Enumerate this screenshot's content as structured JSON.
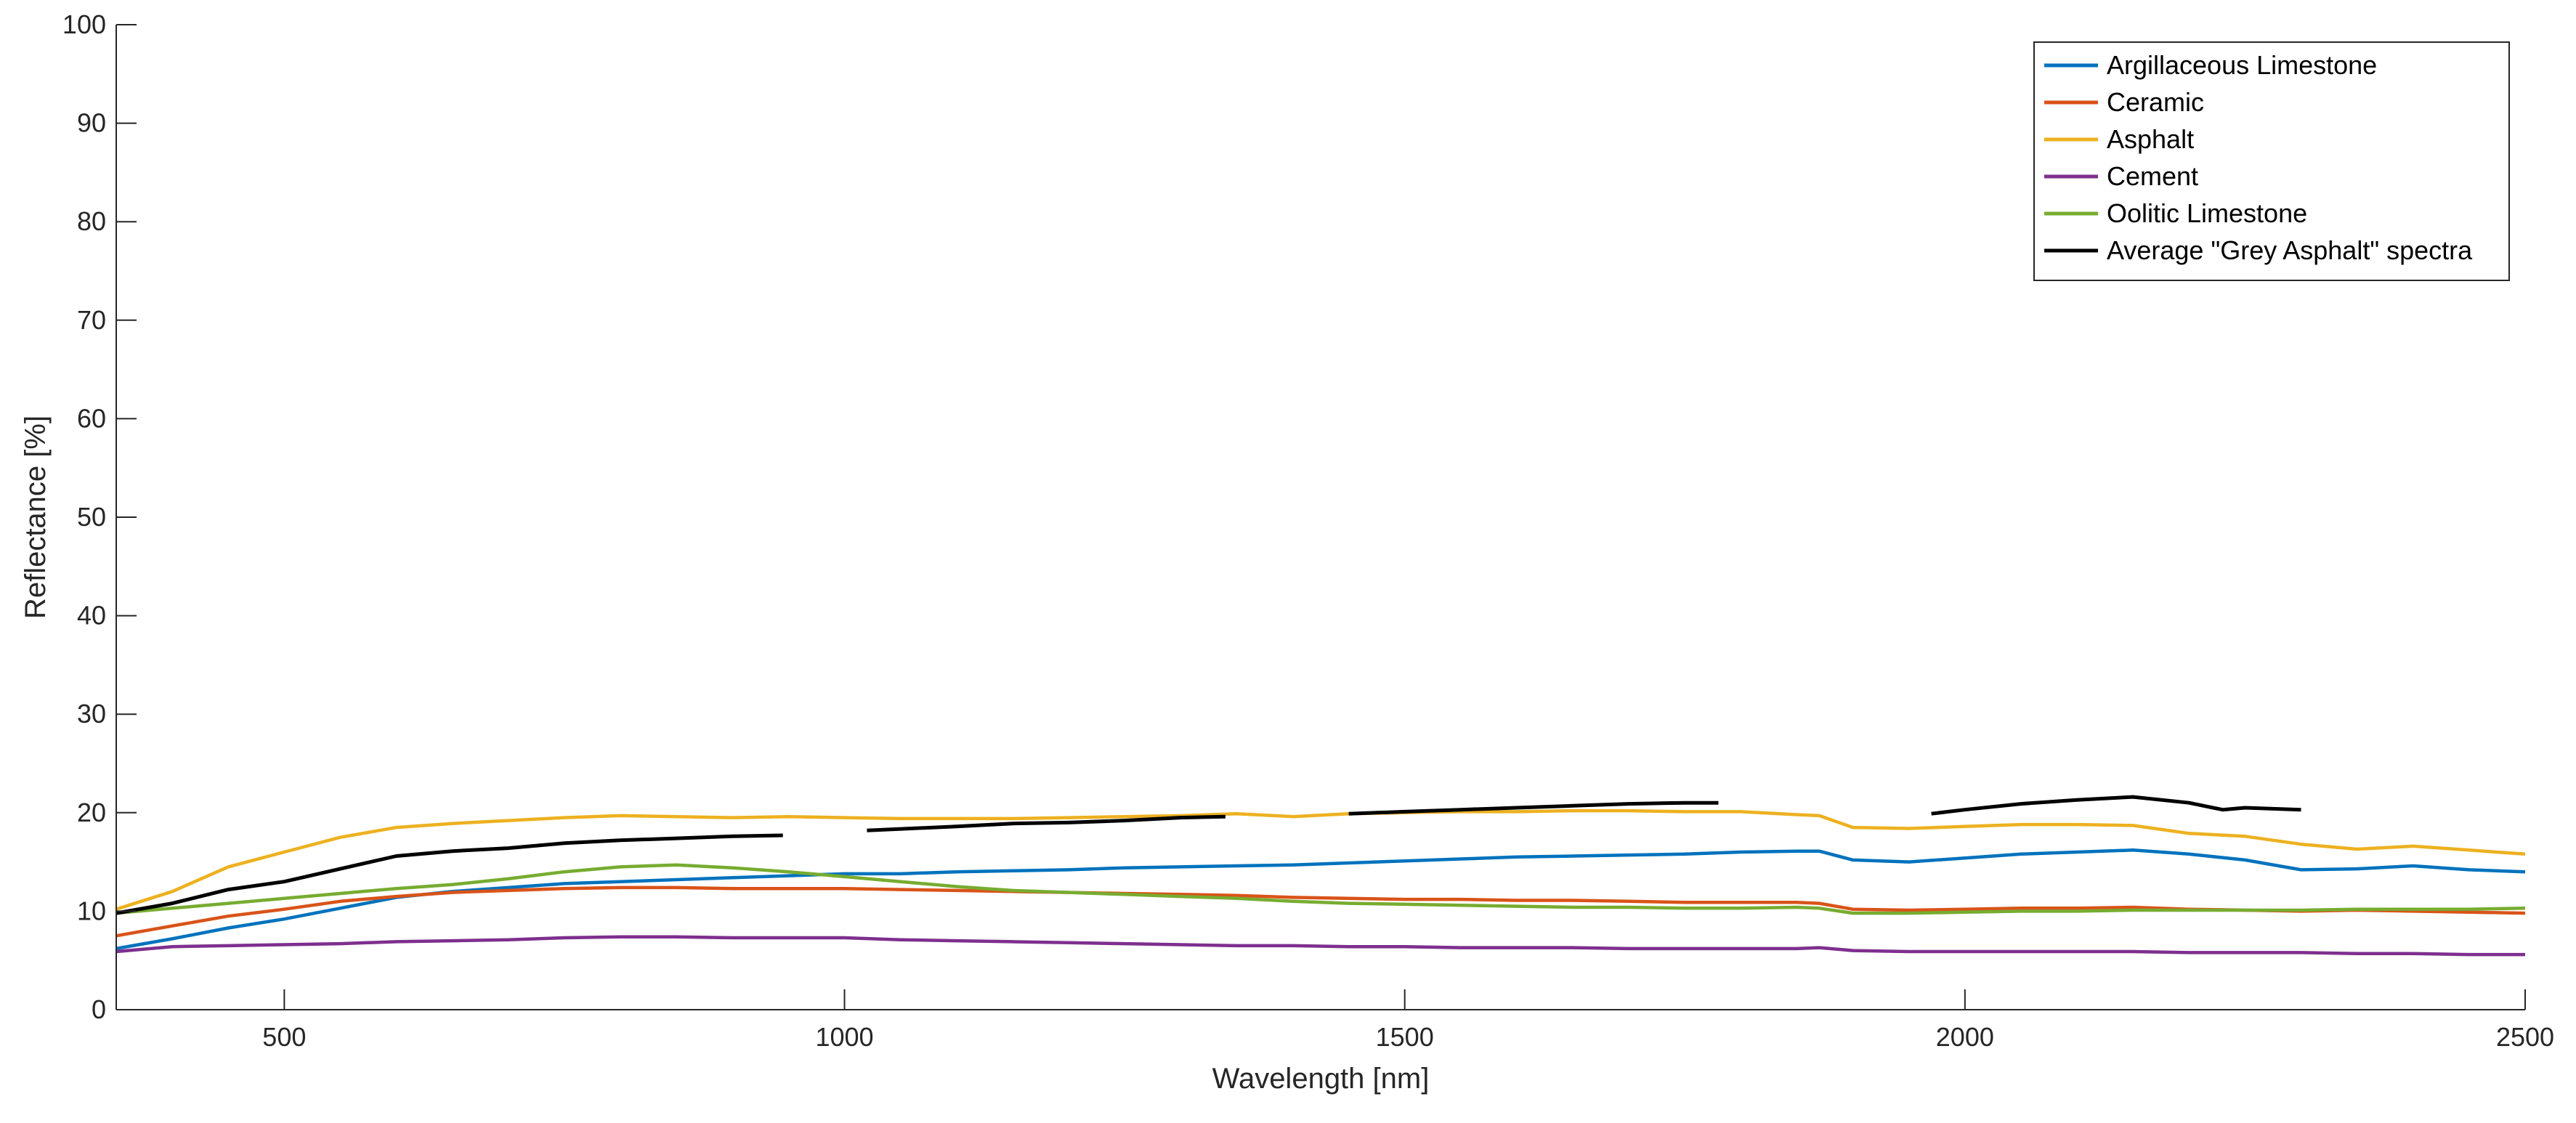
{
  "chart_data": {
    "type": "line",
    "xlabel": "Wavelength [nm]",
    "ylabel": "Reflectance [%]",
    "xlim": [
      350,
      2500
    ],
    "ylim": [
      0,
      100
    ],
    "xticks": [
      500,
      1000,
      1500,
      2000,
      2500
    ],
    "yticks": [
      0,
      10,
      20,
      30,
      40,
      50,
      60,
      70,
      80,
      90,
      100
    ],
    "grid": false,
    "legend_position": "top-right",
    "series": [
      {
        "name": "Argillaceous Limestone",
        "color": "#0072BD",
        "segments": [
          [
            [
              350,
              6.2
            ],
            [
              400,
              7.2
            ],
            [
              450,
              8.3
            ],
            [
              500,
              9.2
            ],
            [
              550,
              10.3
            ],
            [
              600,
              11.4
            ],
            [
              650,
              12.0
            ],
            [
              700,
              12.4
            ],
            [
              750,
              12.8
            ],
            [
              800,
              13.0
            ],
            [
              850,
              13.2
            ],
            [
              900,
              13.4
            ],
            [
              950,
              13.6
            ],
            [
              1000,
              13.8
            ],
            [
              1050,
              13.8
            ],
            [
              1100,
              14.0
            ],
            [
              1150,
              14.1
            ],
            [
              1200,
              14.2
            ],
            [
              1250,
              14.4
            ],
            [
              1300,
              14.5
            ],
            [
              1350,
              14.6
            ],
            [
              1400,
              14.7
            ],
            [
              1450,
              14.9
            ],
            [
              1500,
              15.1
            ],
            [
              1550,
              15.3
            ],
            [
              1600,
              15.5
            ],
            [
              1650,
              15.6
            ],
            [
              1700,
              15.7
            ],
            [
              1750,
              15.8
            ],
            [
              1800,
              16.0
            ],
            [
              1850,
              16.1
            ],
            [
              1870,
              16.1
            ],
            [
              1900,
              15.2
            ],
            [
              1950,
              15.0
            ],
            [
              2000,
              15.4
            ],
            [
              2050,
              15.8
            ],
            [
              2100,
              16.0
            ],
            [
              2150,
              16.2
            ],
            [
              2200,
              15.8
            ],
            [
              2250,
              15.2
            ],
            [
              2300,
              14.2
            ],
            [
              2350,
              14.3
            ],
            [
              2400,
              14.6
            ],
            [
              2450,
              14.2
            ],
            [
              2500,
              14.0
            ]
          ]
        ]
      },
      {
        "name": "Ceramic",
        "color": "#D95319",
        "segments": [
          [
            [
              350,
              7.5
            ],
            [
              400,
              8.5
            ],
            [
              450,
              9.5
            ],
            [
              500,
              10.2
            ],
            [
              550,
              11.0
            ],
            [
              600,
              11.5
            ],
            [
              650,
              11.9
            ],
            [
              700,
              12.1
            ],
            [
              750,
              12.3
            ],
            [
              800,
              12.4
            ],
            [
              850,
              12.4
            ],
            [
              900,
              12.3
            ],
            [
              950,
              12.3
            ],
            [
              1000,
              12.3
            ],
            [
              1050,
              12.2
            ],
            [
              1100,
              12.1
            ],
            [
              1150,
              12.0
            ],
            [
              1200,
              11.9
            ],
            [
              1250,
              11.8
            ],
            [
              1300,
              11.7
            ],
            [
              1350,
              11.6
            ],
            [
              1400,
              11.4
            ],
            [
              1450,
              11.3
            ],
            [
              1500,
              11.2
            ],
            [
              1550,
              11.2
            ],
            [
              1600,
              11.1
            ],
            [
              1650,
              11.1
            ],
            [
              1700,
              11.0
            ],
            [
              1750,
              10.9
            ],
            [
              1800,
              10.9
            ],
            [
              1850,
              10.9
            ],
            [
              1870,
              10.8
            ],
            [
              1900,
              10.2
            ],
            [
              1950,
              10.1
            ],
            [
              2000,
              10.2
            ],
            [
              2050,
              10.3
            ],
            [
              2100,
              10.3
            ],
            [
              2150,
              10.4
            ],
            [
              2200,
              10.2
            ],
            [
              2250,
              10.1
            ],
            [
              2300,
              10.0
            ],
            [
              2350,
              10.1
            ],
            [
              2400,
              10.0
            ],
            [
              2450,
              9.9
            ],
            [
              2500,
              9.8
            ]
          ]
        ]
      },
      {
        "name": "Asphalt",
        "color": "#EDB120",
        "segments": [
          [
            [
              350,
              10.2
            ],
            [
              400,
              12.0
            ],
            [
              450,
              14.5
            ],
            [
              500,
              16.0
            ],
            [
              550,
              17.5
            ],
            [
              600,
              18.5
            ],
            [
              650,
              18.9
            ],
            [
              700,
              19.2
            ],
            [
              750,
              19.5
            ],
            [
              800,
              19.7
            ],
            [
              850,
              19.6
            ],
            [
              900,
              19.5
            ],
            [
              950,
              19.6
            ],
            [
              1000,
              19.5
            ],
            [
              1050,
              19.4
            ],
            [
              1100,
              19.4
            ],
            [
              1150,
              19.4
            ],
            [
              1200,
              19.5
            ],
            [
              1250,
              19.6
            ],
            [
              1300,
              19.7
            ],
            [
              1350,
              19.9
            ],
            [
              1400,
              19.6
            ],
            [
              1450,
              19.9
            ],
            [
              1500,
              20.0
            ],
            [
              1550,
              20.1
            ],
            [
              1600,
              20.1
            ],
            [
              1650,
              20.2
            ],
            [
              1700,
              20.2
            ],
            [
              1750,
              20.1
            ],
            [
              1800,
              20.1
            ],
            [
              1850,
              19.8
            ],
            [
              1870,
              19.7
            ],
            [
              1900,
              18.5
            ],
            [
              1950,
              18.4
            ],
            [
              2000,
              18.6
            ],
            [
              2050,
              18.8
            ],
            [
              2100,
              18.8
            ],
            [
              2150,
              18.7
            ],
            [
              2200,
              17.9
            ],
            [
              2250,
              17.6
            ],
            [
              2300,
              16.8
            ],
            [
              2350,
              16.3
            ],
            [
              2400,
              16.6
            ],
            [
              2450,
              16.2
            ],
            [
              2500,
              15.8
            ]
          ]
        ]
      },
      {
        "name": "Cement",
        "color": "#7E2F8E",
        "segments": [
          [
            [
              350,
              5.9
            ],
            [
              400,
              6.4
            ],
            [
              450,
              6.5
            ],
            [
              500,
              6.6
            ],
            [
              550,
              6.7
            ],
            [
              600,
              6.9
            ],
            [
              650,
              7.0
            ],
            [
              700,
              7.1
            ],
            [
              750,
              7.3
            ],
            [
              800,
              7.4
            ],
            [
              850,
              7.4
            ],
            [
              900,
              7.3
            ],
            [
              950,
              7.3
            ],
            [
              1000,
              7.3
            ],
            [
              1050,
              7.1
            ],
            [
              1100,
              7.0
            ],
            [
              1150,
              6.9
            ],
            [
              1200,
              6.8
            ],
            [
              1250,
              6.7
            ],
            [
              1300,
              6.6
            ],
            [
              1350,
              6.5
            ],
            [
              1400,
              6.5
            ],
            [
              1450,
              6.4
            ],
            [
              1500,
              6.4
            ],
            [
              1550,
              6.3
            ],
            [
              1600,
              6.3
            ],
            [
              1650,
              6.3
            ],
            [
              1700,
              6.2
            ],
            [
              1750,
              6.2
            ],
            [
              1800,
              6.2
            ],
            [
              1850,
              6.2
            ],
            [
              1870,
              6.3
            ],
            [
              1900,
              6.0
            ],
            [
              1950,
              5.9
            ],
            [
              2000,
              5.9
            ],
            [
              2050,
              5.9
            ],
            [
              2100,
              5.9
            ],
            [
              2150,
              5.9
            ],
            [
              2200,
              5.8
            ],
            [
              2250,
              5.8
            ],
            [
              2300,
              5.8
            ],
            [
              2350,
              5.7
            ],
            [
              2400,
              5.7
            ],
            [
              2450,
              5.6
            ],
            [
              2500,
              5.6
            ]
          ]
        ]
      },
      {
        "name": "Oolitic Limestone",
        "color": "#77AC30",
        "segments": [
          [
            [
              350,
              9.8
            ],
            [
              400,
              10.3
            ],
            [
              450,
              10.8
            ],
            [
              500,
              11.3
            ],
            [
              550,
              11.8
            ],
            [
              600,
              12.3
            ],
            [
              650,
              12.7
            ],
            [
              700,
              13.3
            ],
            [
              750,
              14.0
            ],
            [
              800,
              14.5
            ],
            [
              850,
              14.7
            ],
            [
              900,
              14.4
            ],
            [
              950,
              14.0
            ],
            [
              1000,
              13.5
            ],
            [
              1050,
              13.0
            ],
            [
              1100,
              12.5
            ],
            [
              1150,
              12.1
            ],
            [
              1200,
              11.9
            ],
            [
              1250,
              11.7
            ],
            [
              1300,
              11.5
            ],
            [
              1350,
              11.3
            ],
            [
              1400,
              11.0
            ],
            [
              1450,
              10.8
            ],
            [
              1500,
              10.7
            ],
            [
              1550,
              10.6
            ],
            [
              1600,
              10.5
            ],
            [
              1650,
              10.4
            ],
            [
              1700,
              10.4
            ],
            [
              1750,
              10.3
            ],
            [
              1800,
              10.3
            ],
            [
              1850,
              10.4
            ],
            [
              1870,
              10.3
            ],
            [
              1900,
              9.8
            ],
            [
              1950,
              9.8
            ],
            [
              2000,
              9.9
            ],
            [
              2050,
              10.0
            ],
            [
              2100,
              10.0
            ],
            [
              2150,
              10.1
            ],
            [
              2200,
              10.1
            ],
            [
              2250,
              10.1
            ],
            [
              2300,
              10.1
            ],
            [
              2350,
              10.2
            ],
            [
              2400,
              10.2
            ],
            [
              2450,
              10.2
            ],
            [
              2500,
              10.3
            ]
          ]
        ]
      },
      {
        "name": "Average \"Grey Asphalt\" spectra",
        "color": "#000000",
        "segments": [
          [
            [
              350,
              9.8
            ],
            [
              400,
              10.8
            ],
            [
              450,
              12.2
            ],
            [
              500,
              13.0
            ],
            [
              550,
              14.3
            ],
            [
              600,
              15.6
            ],
            [
              650,
              16.1
            ],
            [
              700,
              16.4
            ],
            [
              750,
              16.9
            ],
            [
              800,
              17.2
            ],
            [
              850,
              17.4
            ],
            [
              900,
              17.6
            ],
            [
              945,
              17.7
            ]
          ],
          [
            [
              1020,
              18.2
            ],
            [
              1100,
              18.6
            ],
            [
              1150,
              18.9
            ],
            [
              1200,
              19.0
            ],
            [
              1250,
              19.2
            ],
            [
              1300,
              19.5
            ],
            [
              1340,
              19.6
            ]
          ],
          [
            [
              1450,
              19.9
            ],
            [
              1500,
              20.1
            ],
            [
              1550,
              20.3
            ],
            [
              1600,
              20.5
            ],
            [
              1650,
              20.7
            ],
            [
              1700,
              20.9
            ],
            [
              1750,
              21.0
            ],
            [
              1780,
              21.0
            ]
          ],
          [
            [
              1970,
              19.9
            ],
            [
              2000,
              20.3
            ],
            [
              2050,
              20.9
            ],
            [
              2100,
              21.3
            ],
            [
              2150,
              21.6
            ],
            [
              2200,
              21.0
            ],
            [
              2230,
              20.3
            ],
            [
              2250,
              20.5
            ],
            [
              2300,
              20.3
            ]
          ]
        ]
      }
    ]
  }
}
